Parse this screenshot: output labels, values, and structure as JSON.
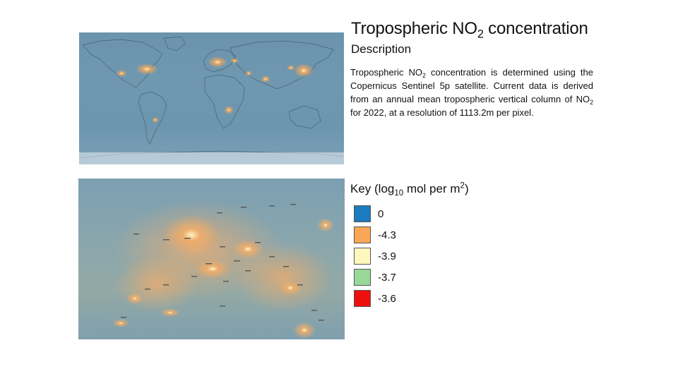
{
  "title": {
    "prefix": "Tropospheric NO",
    "sub": "2",
    "suffix": " concentration"
  },
  "subtitle": "Description",
  "description": {
    "p1": "Tropospheric NO",
    "p1_sub": "2",
    "p2": " concentration is determined using the Copernicus Sentinel 5p satellite. Current data is derived from an annual mean tropospheric vertical column of NO",
    "p2_sub": "2",
    "p3": " for 2022, at a resolution of 1113.2m per pixel."
  },
  "key": {
    "prefix": "Key (log",
    "sub": "10",
    "mid": " mol per m",
    "sup": "2",
    "suffix": ")",
    "items": [
      {
        "label": "0",
        "color": "#1b7bbf"
      },
      {
        "label": "-4.3",
        "color": "#f9a656"
      },
      {
        "label": "-3.9",
        "color": "#fef8bd"
      },
      {
        "label": "-3.7",
        "color": "#98d99a"
      },
      {
        "label": "-3.6",
        "color": "#ee0f0f"
      }
    ]
  },
  "maps": {
    "world_map": "world map",
    "europe_map": "regional map"
  }
}
